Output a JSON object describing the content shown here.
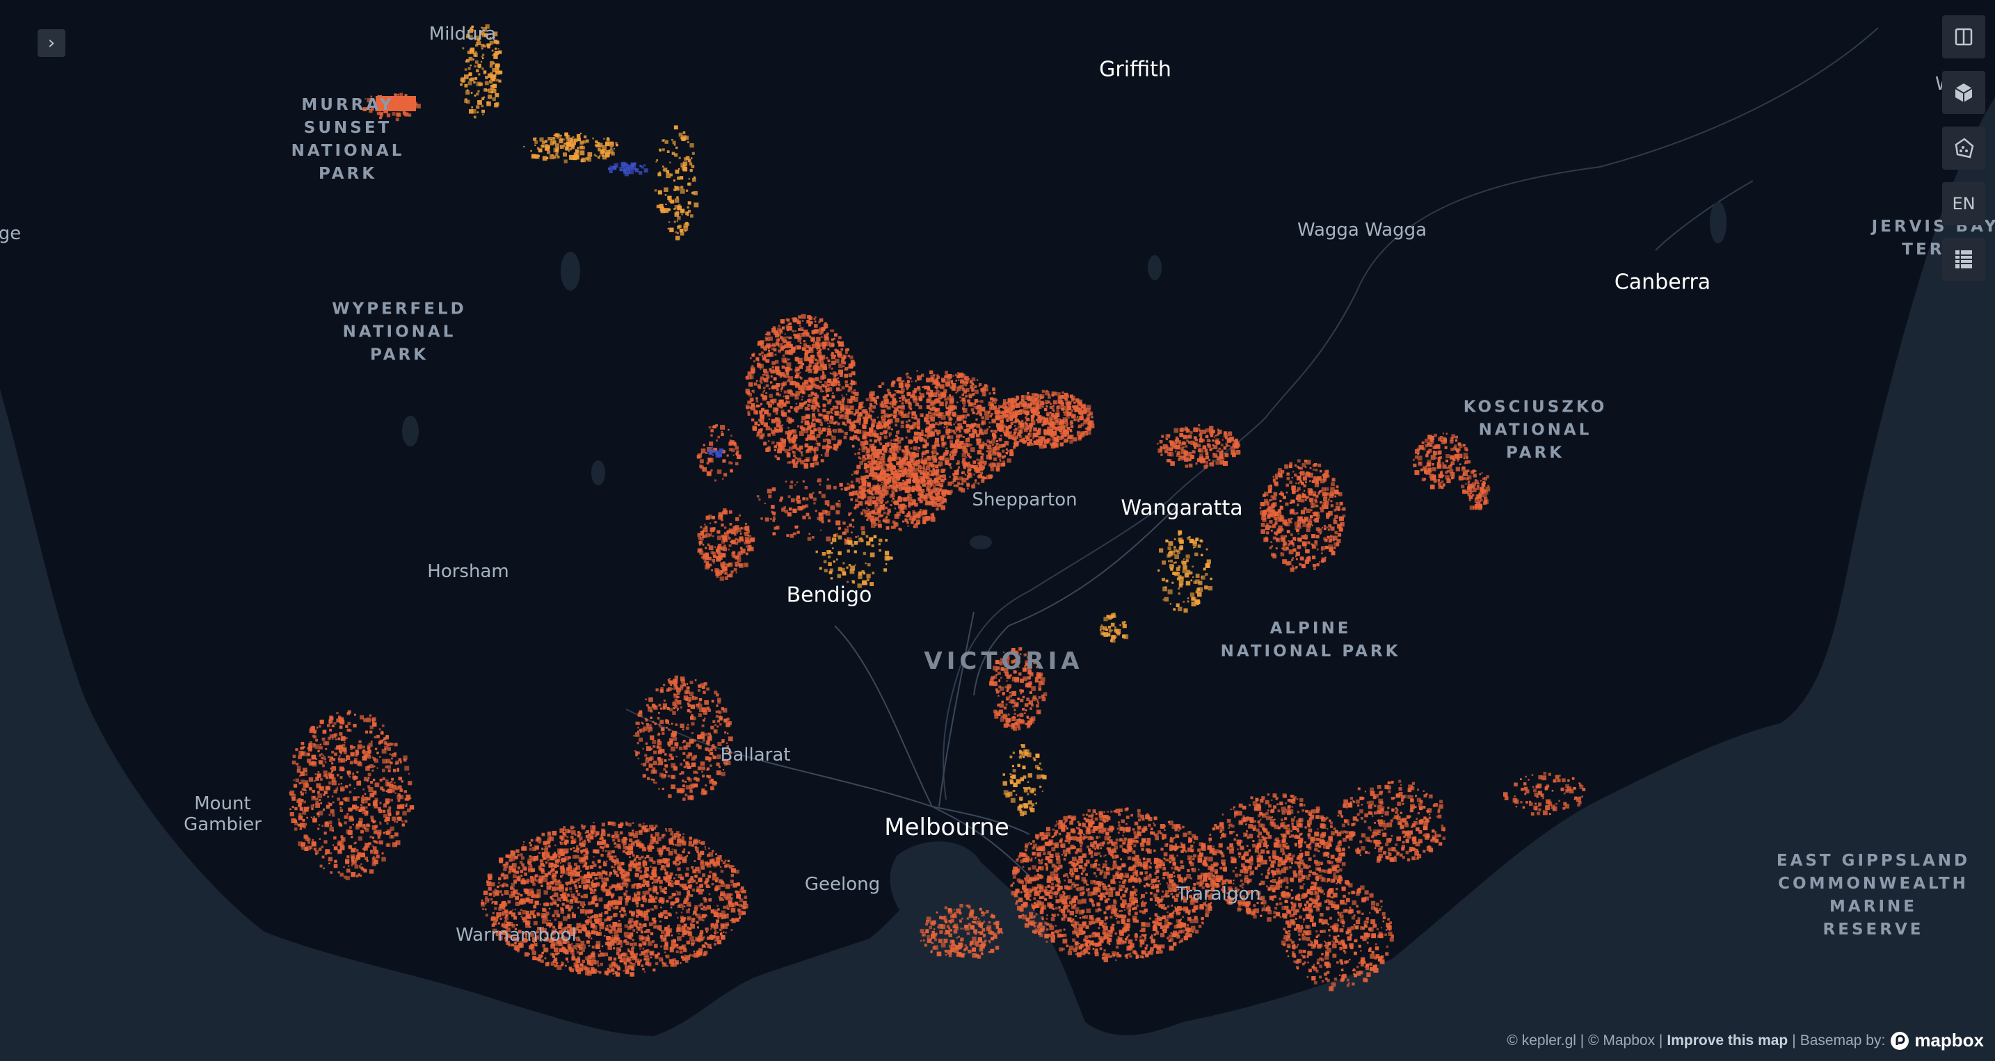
{
  "map": {
    "places": [
      {
        "id": "mildura",
        "label": "Mildura",
        "kind": "town"
      },
      {
        "id": "griffith",
        "label": "Griffith",
        "kind": "city"
      },
      {
        "id": "wagga",
        "label": "Wagga Wagga",
        "kind": "town"
      },
      {
        "id": "canberra",
        "label": "Canberra",
        "kind": "city"
      },
      {
        "id": "shepparton",
        "label": "Shepparton",
        "kind": "town"
      },
      {
        "id": "wangaratta",
        "label": "Wangaratta",
        "kind": "city"
      },
      {
        "id": "bendigo",
        "label": "Bendigo",
        "kind": "city"
      },
      {
        "id": "horsham",
        "label": "Horsham",
        "kind": "town"
      },
      {
        "id": "ballarat",
        "label": "Ballarat",
        "kind": "town"
      },
      {
        "id": "melbourne",
        "label": "Melbourne",
        "kind": "major"
      },
      {
        "id": "geelong",
        "label": "Geelong",
        "kind": "town"
      },
      {
        "id": "traralgon",
        "label": "Traralgon",
        "kind": "town"
      },
      {
        "id": "warrnambool",
        "label": "Warrnambool",
        "kind": "town"
      },
      {
        "id": "mount-gambier",
        "label": "Mount\nGambier",
        "kind": "town"
      },
      {
        "id": "ge",
        "label": "ge",
        "kind": "town"
      },
      {
        "id": "wagga-edge",
        "label": "Wa",
        "kind": "town"
      }
    ],
    "parks": [
      {
        "id": "murray-sunset",
        "label": "MURRAY\nSUNSET\nNATIONAL\nPARK"
      },
      {
        "id": "wyperfeld",
        "label": "WYPERFELD\nNATIONAL\nPARK"
      },
      {
        "id": "kosciuszko",
        "label": "KOSCIUSZKO\nNATIONAL\nPARK"
      },
      {
        "id": "alpine",
        "label": "ALPINE\nNATIONAL PARK"
      },
      {
        "id": "jervis",
        "label": "JERVIS BAY\nTERRI"
      },
      {
        "id": "east-gippsland",
        "label": "EAST GIPPSLAND\nCOMMONWEALTH\nMARINE\nRESERVE"
      }
    ],
    "state_label": "VICTORIA",
    "colors": {
      "land": "#0b111c",
      "sea": "#1b2634",
      "primary_points": "#e8643a",
      "secondary_points": "#f0a03a",
      "accent_points": "#3b4fc8"
    }
  },
  "controls": {
    "toggle_icon": "chevron-right-icon",
    "toggle_glyph": "›",
    "tools": [
      {
        "name": "split-map-icon",
        "label": ""
      },
      {
        "name": "3d-view-icon",
        "label": ""
      },
      {
        "name": "draw-polygon-icon",
        "label": ""
      },
      {
        "name": "language-toggle",
        "label": "EN"
      },
      {
        "name": "legend-icon",
        "label": ""
      }
    ]
  },
  "attribution": {
    "kepler": "© kepler.gl | © Mapbox |",
    "improve": "Improve this map",
    "basemap_sep": "|",
    "basemap": "Basemap by:",
    "brand": "mapbox"
  }
}
